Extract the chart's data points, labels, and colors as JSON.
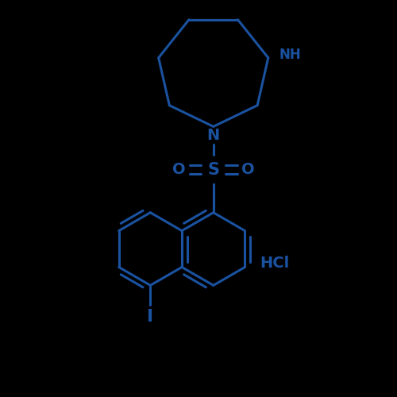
{
  "bg_color": "#000000",
  "line_color": "#1a52a0",
  "line_width": 2.2,
  "text_color": "#1a52a0",
  "font_size_label": 14,
  "font_size_small": 12,
  "fig_size": [
    5.0,
    5.0
  ],
  "dpi": 100,
  "xlim": [
    -2.2,
    2.2
  ],
  "ylim": [
    -2.4,
    2.4
  ]
}
